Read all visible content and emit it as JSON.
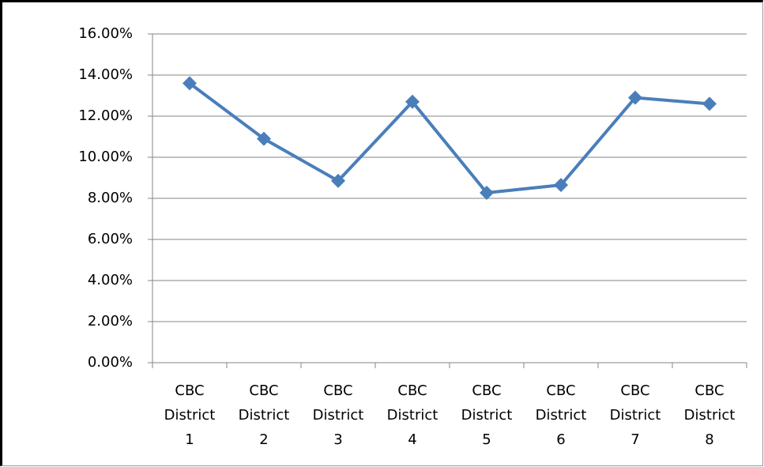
{
  "chart_data": {
    "type": "line",
    "categories": [
      "CBC District 1",
      "CBC District 2",
      "CBC District 3",
      "CBC District 4",
      "CBC District 5",
      "CBC District 6",
      "CBC District 7",
      "CBC District 8"
    ],
    "values": [
      13.6,
      10.9,
      8.85,
      12.7,
      8.27,
      8.65,
      12.9,
      12.6
    ],
    "color": "#4a7ebb",
    "ylim": [
      0,
      16
    ],
    "yticks": [
      {
        "value": 0,
        "label": "0.00%"
      },
      {
        "value": 2,
        "label": "2.00%"
      },
      {
        "value": 4,
        "label": "4.00%"
      },
      {
        "value": 6,
        "label": "6.00%"
      },
      {
        "value": 8,
        "label": "8.00%"
      },
      {
        "value": 10,
        "label": "10.00%"
      },
      {
        "value": 12,
        "label": "12.00%"
      },
      {
        "value": 14,
        "label": "14.00%"
      },
      {
        "value": 16,
        "label": "16.00%"
      }
    ],
    "grid": true
  }
}
